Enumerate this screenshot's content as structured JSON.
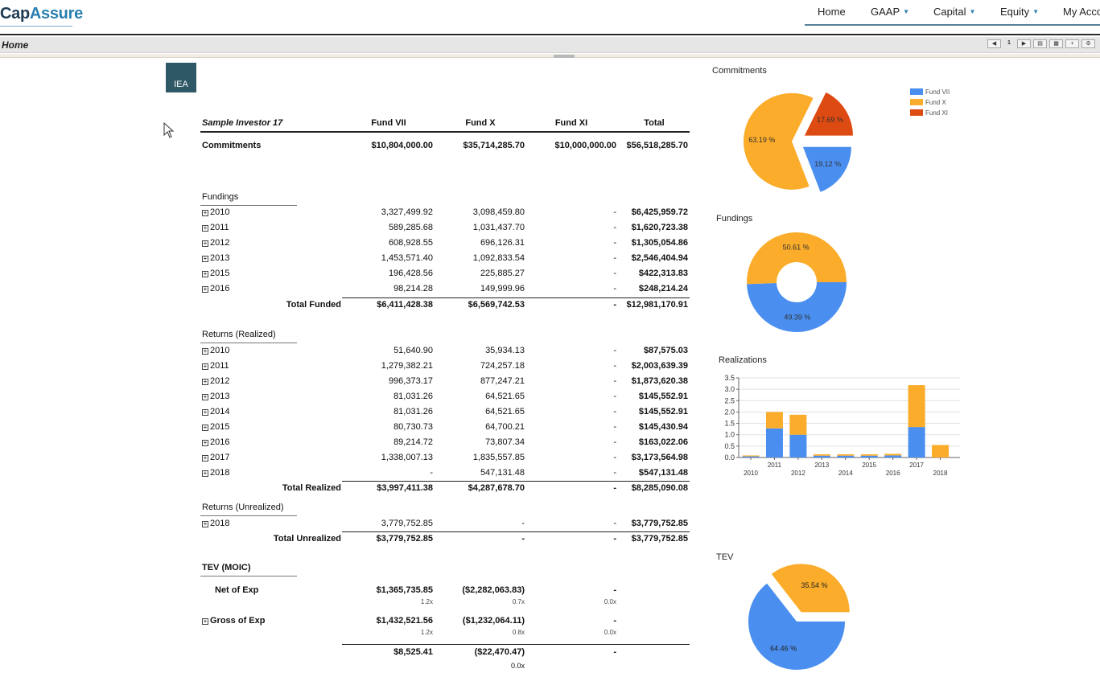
{
  "app": {
    "logo_part1": "Cap",
    "logo_part2": "Assure"
  },
  "nav": [
    {
      "label": "Home",
      "caret": false
    },
    {
      "label": "GAAP",
      "caret": true
    },
    {
      "label": "Capital",
      "caret": true
    },
    {
      "label": "Equity",
      "caret": true
    },
    {
      "label": "My Acco",
      "caret": false
    }
  ],
  "breadcrumb": "Home",
  "toolbar": {
    "page": "1"
  },
  "badge": "IEA",
  "table": {
    "header": {
      "investor": "Sample Investor 17",
      "col1": "Fund VII",
      "col2": "Fund X",
      "col3": "Fund XI",
      "col4": "Total"
    },
    "commitments": {
      "label": "Commitments",
      "v1": "$10,804,000.00",
      "v2": "$35,714,285.70",
      "v3": "$10,000,000.00",
      "v4": "$56,518,285.70"
    },
    "fundings": {
      "title": "Fundings",
      "rows": [
        {
          "year": "2010",
          "v1": "3,327,499.92",
          "v2": "3,098,459.80",
          "v3": "-",
          "v4": "$6,425,959.72"
        },
        {
          "year": "2011",
          "v1": "589,285.68",
          "v2": "1,031,437.70",
          "v3": "-",
          "v4": "$1,620,723.38"
        },
        {
          "year": "2012",
          "v1": "608,928.55",
          "v2": "696,126.31",
          "v3": "-",
          "v4": "$1,305,054.86"
        },
        {
          "year": "2013",
          "v1": "1,453,571.40",
          "v2": "1,092,833.54",
          "v3": "-",
          "v4": "$2,546,404.94"
        },
        {
          "year": "2015",
          "v1": "196,428.56",
          "v2": "225,885.27",
          "v3": "-",
          "v4": "$422,313.83"
        },
        {
          "year": "2016",
          "v1": "98,214.28",
          "v2": "149,999.96",
          "v3": "-",
          "v4": "$248,214.24"
        }
      ],
      "total": {
        "label": "Total Funded",
        "v1": "$6,411,428.38",
        "v2": "$6,569,742.53",
        "v3": "-",
        "v4": "$12,981,170.91"
      }
    },
    "realized": {
      "title": "Returns (Realized)",
      "rows": [
        {
          "year": "2010",
          "v1": "51,640.90",
          "v2": "35,934.13",
          "v3": "-",
          "v4": "$87,575.03"
        },
        {
          "year": "2011",
          "v1": "1,279,382.21",
          "v2": "724,257.18",
          "v3": "-",
          "v4": "$2,003,639.39"
        },
        {
          "year": "2012",
          "v1": "996,373.17",
          "v2": "877,247.21",
          "v3": "-",
          "v4": "$1,873,620.38"
        },
        {
          "year": "2013",
          "v1": "81,031.26",
          "v2": "64,521.65",
          "v3": "-",
          "v4": "$145,552.91"
        },
        {
          "year": "2014",
          "v1": "81,031.26",
          "v2": "64,521.65",
          "v3": "-",
          "v4": "$145,552.91"
        },
        {
          "year": "2015",
          "v1": "80,730.73",
          "v2": "64,700.21",
          "v3": "-",
          "v4": "$145,430.94"
        },
        {
          "year": "2016",
          "v1": "89,214.72",
          "v2": "73,807.34",
          "v3": "-",
          "v4": "$163,022.06"
        },
        {
          "year": "2017",
          "v1": "1,338,007.13",
          "v2": "1,835,557.85",
          "v3": "-",
          "v4": "$3,173,564.98"
        },
        {
          "year": "2018",
          "v1": "-",
          "v2": "547,131.48",
          "v3": "-",
          "v4": "$547,131.48"
        }
      ],
      "total": {
        "label": "Total Realized",
        "v1": "$3,997,411.38",
        "v2": "$4,287,678.70",
        "v3": "-",
        "v4": "$8,285,090.08"
      }
    },
    "unrealized": {
      "title": "Returns (Unrealized)",
      "rows": [
        {
          "year": "2018",
          "v1": "3,779,752.85",
          "v2": "-",
          "v3": "-",
          "v4": "$3,779,752.85"
        }
      ],
      "total": {
        "label": "Total Unrealized",
        "v1": "$3,779,752.85",
        "v2": "-",
        "v3": "-",
        "v4": "$3,779,752.85"
      }
    },
    "tev": {
      "title": "TEV (MOIC)",
      "net": {
        "label": "Net of Exp",
        "v1": "$1,365,735.85",
        "v2": "($2,282,063.83)",
        "v3": "-",
        "m1": "1.2x",
        "m2": "0.7x",
        "m3": "0.0x"
      },
      "gross": {
        "label": "Gross of Exp",
        "v1": "$1,432,521.56",
        "v2": "($1,232,064.11)",
        "v3": "-",
        "m1": "1.2x",
        "m2": "0.8x",
        "m3": "0.0x"
      },
      "diff": {
        "v1": "$8,525.41",
        "v2": "($22,470.47)",
        "v3": "-",
        "m2": "0.0x"
      }
    }
  },
  "colors": {
    "fund_vii": "#4a8ff0",
    "fund_x": "#fbac2a",
    "fund_xi": "#dd4a12"
  },
  "chart_data": [
    {
      "type": "pie",
      "title": "Commitments",
      "legend": [
        "Fund VII",
        "Fund X",
        "Fund XI"
      ],
      "slices": [
        {
          "name": "Fund VII",
          "percent": 19.12,
          "label": "19.12 %"
        },
        {
          "name": "Fund X",
          "percent": 63.19,
          "label": "63.19 %"
        },
        {
          "name": "Fund XI",
          "percent": 17.69,
          "label": "17.69 %"
        }
      ]
    },
    {
      "type": "pie",
      "title": "Fundings",
      "slices": [
        {
          "name": "Fund VII",
          "percent": 49.39,
          "label": "49.39 %"
        },
        {
          "name": "Fund X",
          "percent": 50.61,
          "label": "50.61 %"
        }
      ]
    },
    {
      "type": "bar",
      "title": "Realizations",
      "categories": [
        "2010",
        "2011",
        "2012",
        "2013",
        "2014",
        "2015",
        "2016",
        "2017",
        "2018"
      ],
      "series": [
        {
          "name": "Fund VII",
          "values": [
            0.05,
            1.28,
            1.0,
            0.08,
            0.08,
            0.08,
            0.09,
            1.34,
            0.0
          ]
        },
        {
          "name": "Fund X",
          "values": [
            0.04,
            0.72,
            0.88,
            0.06,
            0.06,
            0.06,
            0.07,
            1.84,
            0.55
          ]
        }
      ],
      "ylim": [
        0,
        3.5
      ],
      "yticks": [
        "0.0",
        "0.5",
        "1.0",
        "1.5",
        "2.0",
        "2.5",
        "3.0",
        "3.5"
      ],
      "stacked": true
    },
    {
      "type": "pie",
      "title": "TEV",
      "slices": [
        {
          "name": "Fund VII",
          "percent": 64.46,
          "label": "64.46 %"
        },
        {
          "name": "Fund X",
          "percent": 35.54,
          "label": "35.54 %"
        }
      ]
    }
  ]
}
